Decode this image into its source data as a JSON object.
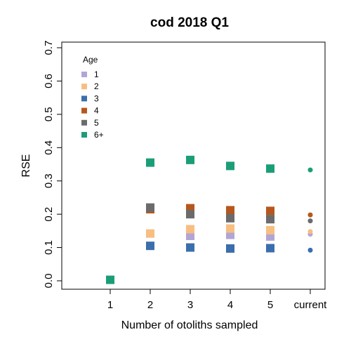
{
  "chart_data": {
    "type": "scatter",
    "title": "cod 2018 Q1",
    "xlabel": "Number of otoliths sampled",
    "ylabel": "RSE",
    "categories": [
      "1",
      "2",
      "3",
      "4",
      "5",
      "current"
    ],
    "ylim": [
      0,
      0.7
    ],
    "yticks": [
      "0.0",
      "0.1",
      "0.2",
      "0.3",
      "0.4",
      "0.5",
      "0.6",
      "0.7"
    ],
    "grid": false,
    "legend": {
      "title": "Age",
      "position": "top-left"
    },
    "series": [
      {
        "name": "1",
        "color": "#b2a5d6",
        "values": [
          null,
          null,
          0.135,
          0.138,
          0.133,
          0.14
        ],
        "markers": [
          null,
          null,
          "square",
          "square",
          "square",
          "circle"
        ]
      },
      {
        "name": "2",
        "color": "#f7be82",
        "values": [
          null,
          0.142,
          0.155,
          0.157,
          0.152,
          0.148
        ],
        "markers": [
          null,
          "square",
          "square",
          "square",
          "square",
          "circle"
        ]
      },
      {
        "name": "3",
        "color": "#3a6ead",
        "values": [
          null,
          0.105,
          0.1,
          0.097,
          0.098,
          0.092
        ],
        "markers": [
          null,
          "square",
          "square",
          "square",
          "square",
          "circle"
        ]
      },
      {
        "name": "4",
        "color": "#b5581e",
        "values": [
          null,
          0.215,
          0.218,
          0.212,
          0.21,
          0.198
        ],
        "markers": [
          null,
          "square",
          "square",
          "square",
          "square",
          "circle"
        ]
      },
      {
        "name": "5",
        "color": "#6b6b6b",
        "values": [
          null,
          0.22,
          0.2,
          0.188,
          0.185,
          0.18
        ],
        "markers": [
          null,
          "square",
          "square",
          "square",
          "square",
          "circle"
        ]
      },
      {
        "name": "6+",
        "color": "#1b9e77",
        "values": [
          0.003,
          0.355,
          0.363,
          0.345,
          0.337,
          0.333
        ],
        "markers": [
          "square",
          "square",
          "square",
          "square",
          "square",
          "circle"
        ]
      }
    ]
  }
}
